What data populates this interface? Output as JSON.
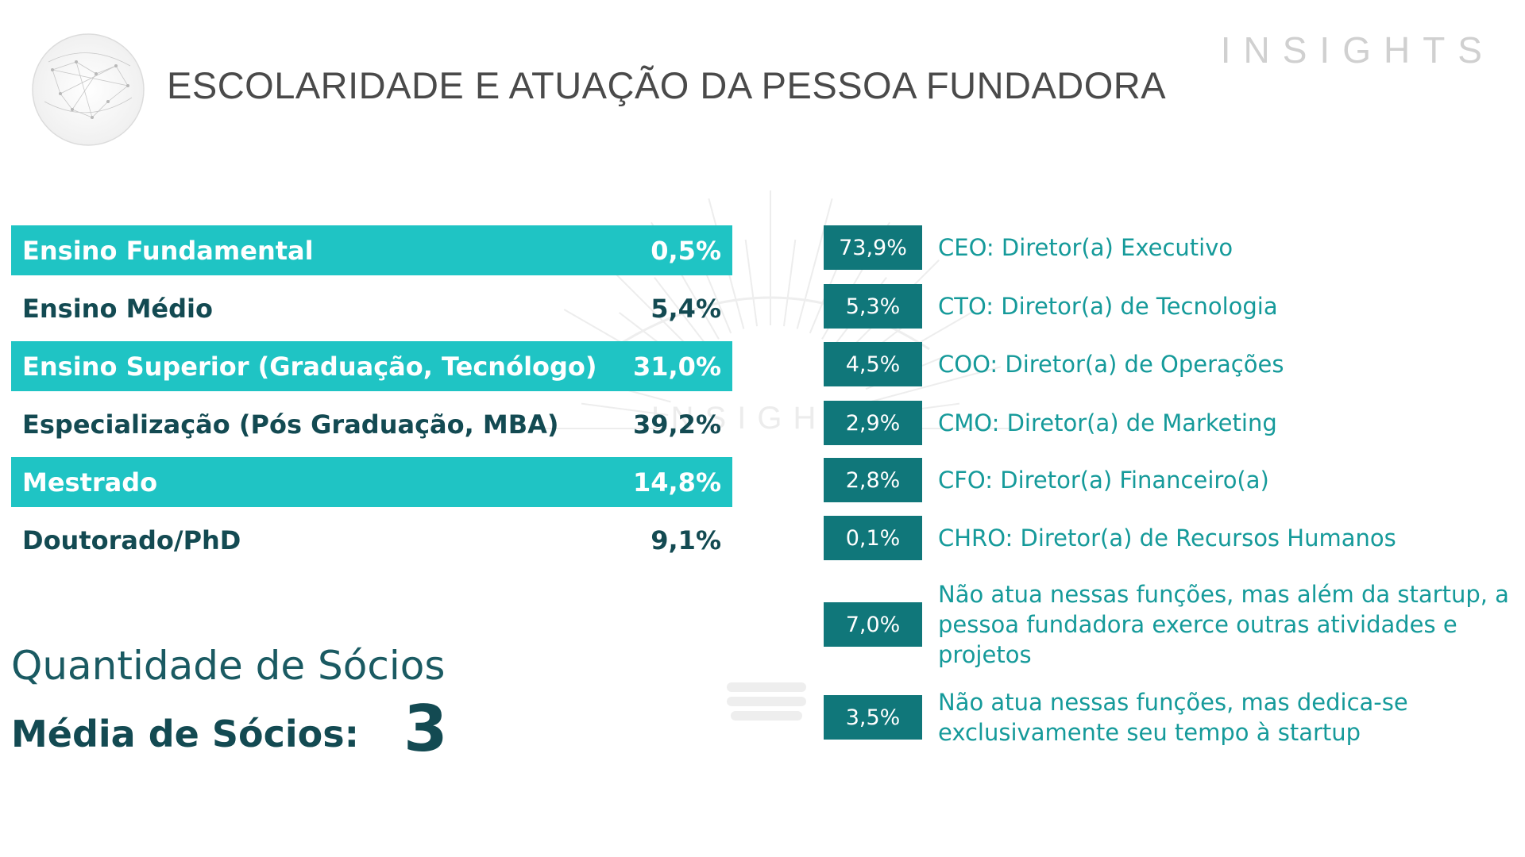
{
  "header": {
    "title": "ESCOLARIDADE E ATUAÇÃO DA PESSOA FUNDADORA",
    "brand": "INSIGHTS",
    "globe_icon": "globe-network-icon"
  },
  "watermark": {
    "text": "INSIGHTS",
    "icon": "sunburst-logo-icon"
  },
  "colors": {
    "highlight": "#1fc4c4",
    "dark_teal": "#134a52",
    "badge": "#10777a",
    "role_text": "#159a9a"
  },
  "education": [
    {
      "label": "Ensino Fundamental",
      "value": "0,5%",
      "highlight": true
    },
    {
      "label": "Ensino Médio",
      "value": "5,4%",
      "highlight": false
    },
    {
      "label": "Ensino Superior (Graduação, Tecnólogo)",
      "value": "31,0%",
      "highlight": true
    },
    {
      "label": "Especialização (Pós Graduação, MBA)",
      "value": "39,2%",
      "highlight": false
    },
    {
      "label": "Mestrado",
      "value": "14,8%",
      "highlight": true
    },
    {
      "label": "Doutorado/PhD",
      "value": "9,1%",
      "highlight": false
    }
  ],
  "socios": {
    "title": "Quantidade de Sócios",
    "label": "Média de Sócios:",
    "value": "3"
  },
  "roles": [
    {
      "value": "73,9%",
      "label": "CEO: Diretor(a) Executivo"
    },
    {
      "value": "5,3%",
      "label": "CTO: Diretor(a) de Tecnologia"
    },
    {
      "value": "4,5%",
      "label": "COO: Diretor(a) de Operações"
    },
    {
      "value": "2,9%",
      "label": "CMO: Diretor(a) de Marketing"
    },
    {
      "value": "2,8%",
      "label": "CFO: Diretor(a) Financeiro(a)"
    },
    {
      "value": "0,1%",
      "label": "CHRO: Diretor(a) de Recursos Humanos"
    },
    {
      "value": "7,0%",
      "label": "Não atua nessas funções, mas além da startup, a pessoa fundadora exerce outras atividades e projetos"
    },
    {
      "value": "3,5%",
      "label": "Não atua nessas funções, mas dedica-se exclusivamente seu tempo à startup"
    }
  ]
}
